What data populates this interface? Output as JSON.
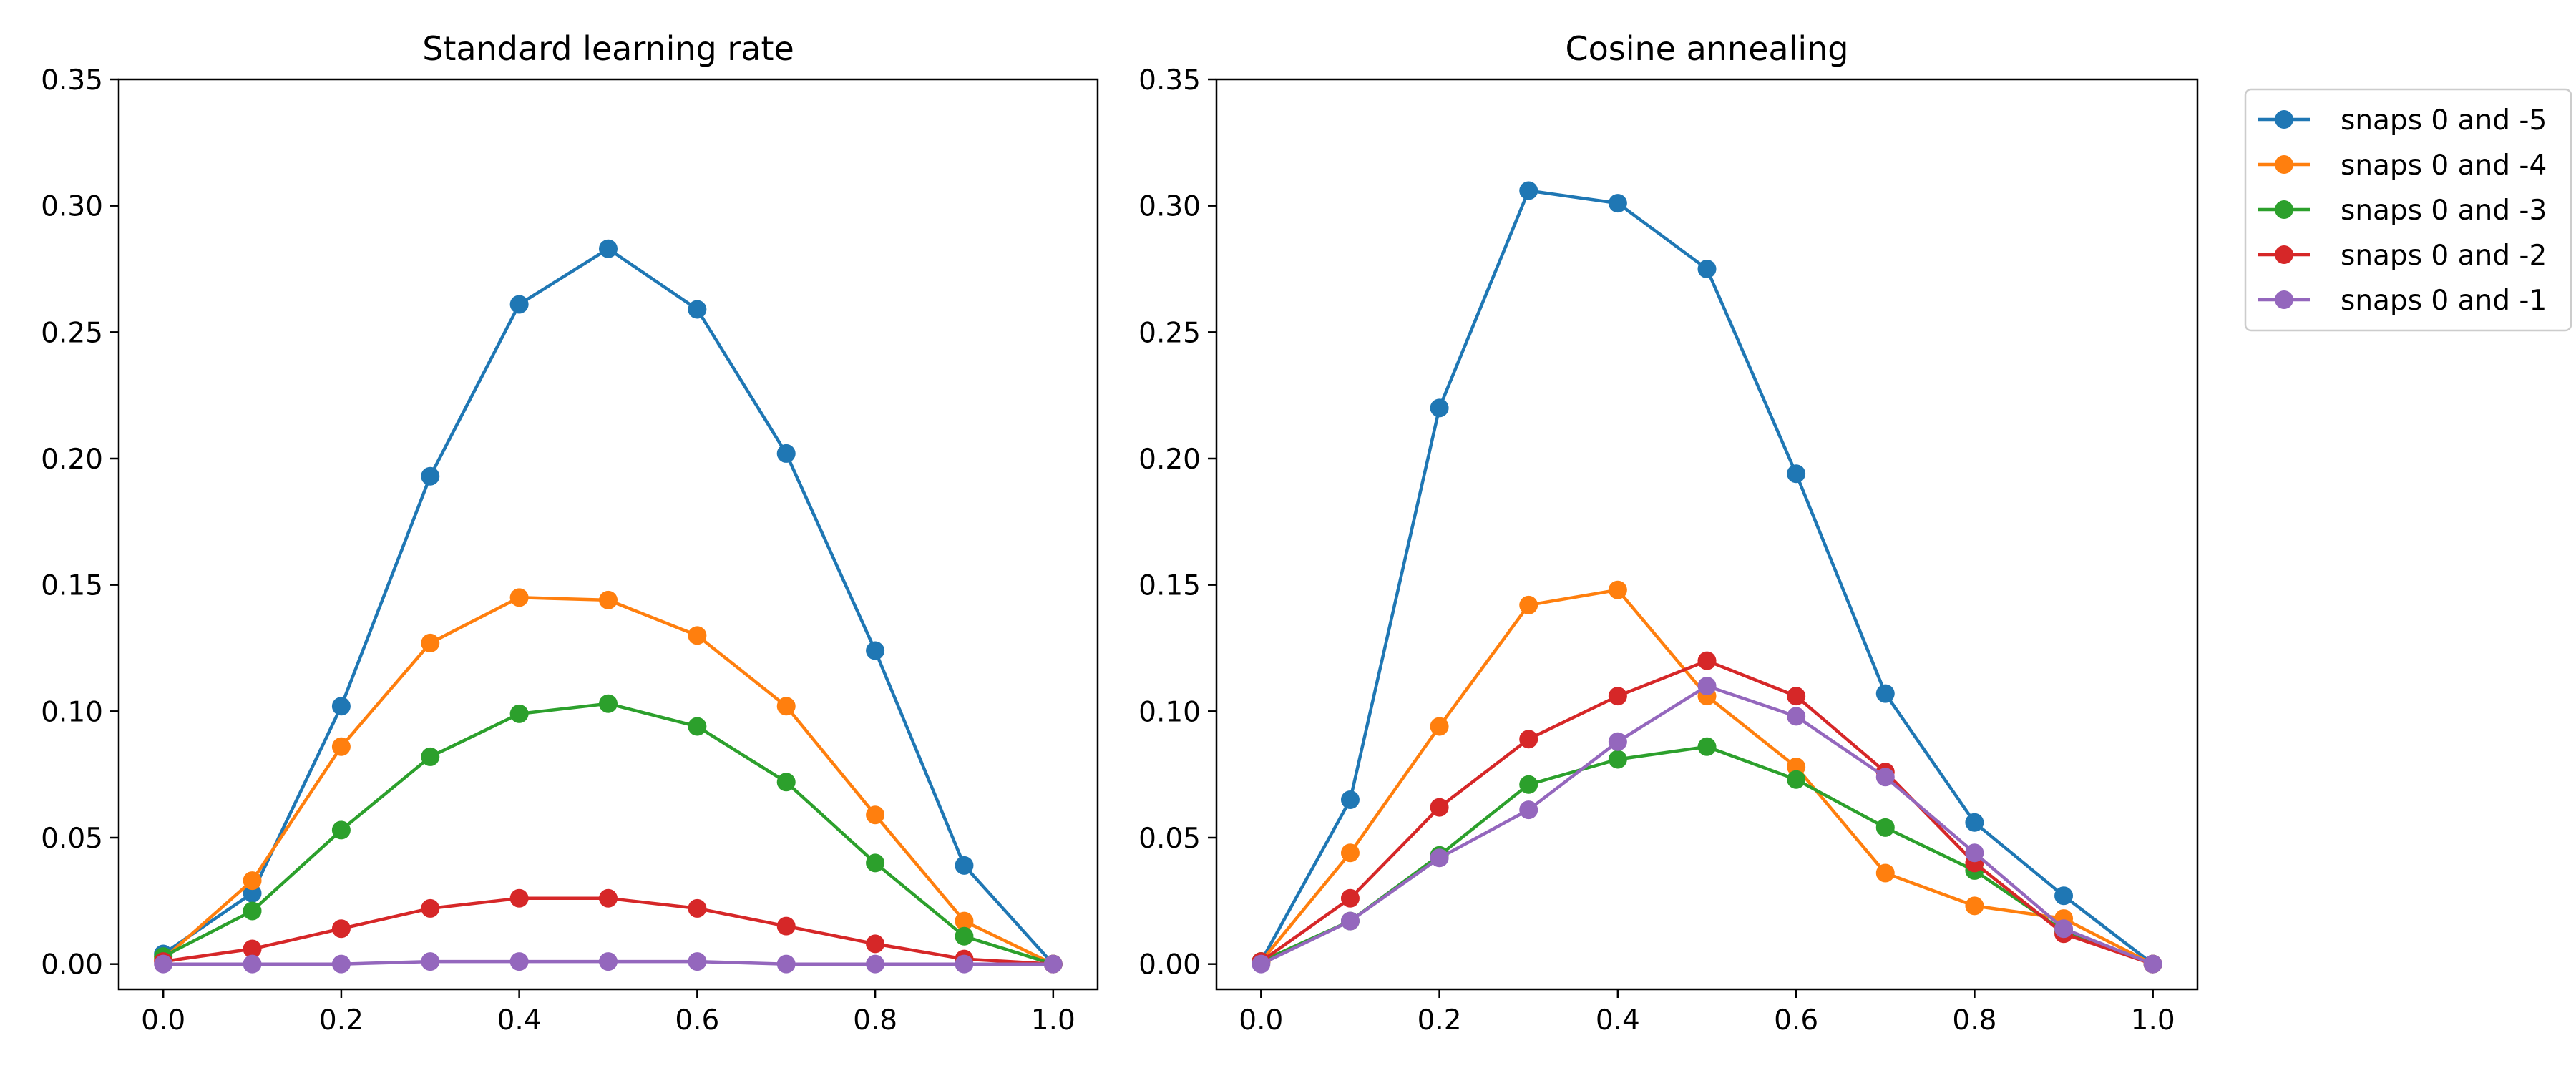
{
  "colors": {
    "blue": "#1f77b4",
    "orange": "#ff7f0e",
    "green": "#2ca02c",
    "red": "#d62728",
    "purple": "#9467bd"
  },
  "legend": {
    "placement": "outside-right",
    "entries": [
      "snaps 0 and -5",
      "snaps 0 and -4",
      "snaps 0 and -3",
      "snaps 0 and -2",
      "snaps 0 and -1"
    ]
  },
  "chart_data": [
    {
      "type": "line",
      "title": "Standard learning rate",
      "xlabel": "",
      "ylabel": "",
      "xlim": [
        -0.05,
        1.05
      ],
      "ylim": [
        -0.01,
        0.35
      ],
      "grid": false,
      "x": [
        0.0,
        0.1,
        0.2,
        0.3,
        0.4,
        0.5,
        0.6,
        0.7,
        0.8,
        0.9,
        1.0
      ],
      "xticks": [
        "0.0",
        "0.2",
        "0.4",
        "0.6",
        "0.8",
        "1.0"
      ],
      "yticks": [
        "0.00",
        "0.05",
        "0.10",
        "0.15",
        "0.20",
        "0.25",
        "0.30",
        "0.35"
      ],
      "series": [
        {
          "name": "snaps 0 and -5",
          "color": "#1f77b4",
          "values": [
            0.004,
            0.028,
            0.102,
            0.193,
            0.261,
            0.283,
            0.259,
            0.202,
            0.124,
            0.039,
            0.0
          ]
        },
        {
          "name": "snaps 0 and -4",
          "color": "#ff7f0e",
          "values": [
            0.002,
            0.033,
            0.086,
            0.127,
            0.145,
            0.144,
            0.13,
            0.102,
            0.059,
            0.017,
            0.0
          ]
        },
        {
          "name": "snaps 0 and -3",
          "color": "#2ca02c",
          "values": [
            0.003,
            0.021,
            0.053,
            0.082,
            0.099,
            0.103,
            0.094,
            0.072,
            0.04,
            0.011,
            0.0
          ]
        },
        {
          "name": "snaps 0 and -2",
          "color": "#d62728",
          "values": [
            0.001,
            0.006,
            0.014,
            0.022,
            0.026,
            0.026,
            0.022,
            0.015,
            0.008,
            0.002,
            0.0
          ]
        },
        {
          "name": "snaps 0 and -1",
          "color": "#9467bd",
          "values": [
            0.0,
            0.0,
            0.0,
            0.001,
            0.001,
            0.001,
            0.001,
            0.0,
            0.0,
            0.0,
            0.0
          ]
        }
      ]
    },
    {
      "type": "line",
      "title": "Cosine annealing",
      "xlabel": "",
      "ylabel": "",
      "xlim": [
        -0.05,
        1.05
      ],
      "ylim": [
        -0.01,
        0.35
      ],
      "grid": false,
      "x": [
        0.0,
        0.1,
        0.2,
        0.3,
        0.4,
        0.5,
        0.6,
        0.7,
        0.8,
        0.9,
        1.0
      ],
      "xticks": [
        "0.0",
        "0.2",
        "0.4",
        "0.6",
        "0.8",
        "1.0"
      ],
      "yticks": [
        "0.00",
        "0.05",
        "0.10",
        "0.15",
        "0.20",
        "0.25",
        "0.30",
        "0.35"
      ],
      "series": [
        {
          "name": "snaps 0 and -5",
          "color": "#1f77b4",
          "values": [
            0.001,
            0.065,
            0.22,
            0.306,
            0.301,
            0.275,
            0.194,
            0.107,
            0.056,
            0.027,
            0.0
          ]
        },
        {
          "name": "snaps 0 and -4",
          "color": "#ff7f0e",
          "values": [
            0.001,
            0.044,
            0.094,
            0.142,
            0.148,
            0.106,
            0.078,
            0.036,
            0.023,
            0.018,
            0.0
          ]
        },
        {
          "name": "snaps 0 and -3",
          "color": "#2ca02c",
          "values": [
            0.001,
            0.017,
            0.043,
            0.071,
            0.081,
            0.086,
            0.073,
            0.054,
            0.037,
            0.013,
            0.0
          ]
        },
        {
          "name": "snaps 0 and -2",
          "color": "#d62728",
          "values": [
            0.001,
            0.026,
            0.062,
            0.089,
            0.106,
            0.12,
            0.106,
            0.076,
            0.04,
            0.012,
            0.0
          ]
        },
        {
          "name": "snaps 0 and -1",
          "color": "#9467bd",
          "values": [
            0.0,
            0.017,
            0.042,
            0.061,
            0.088,
            0.11,
            0.098,
            0.074,
            0.044,
            0.014,
            0.0
          ]
        }
      ]
    }
  ]
}
